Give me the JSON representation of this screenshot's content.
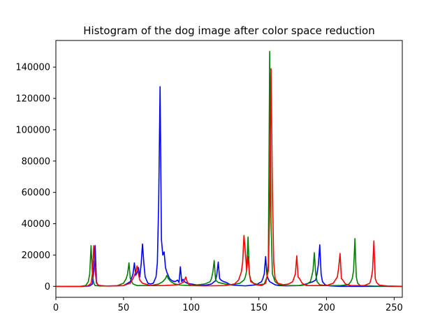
{
  "chart_data": {
    "type": "line",
    "title": "Histogram of the dog image after color space reduction",
    "xlabel": "",
    "ylabel": "",
    "xlim": [
      0,
      256
    ],
    "ylim": [
      -7000,
      157000
    ],
    "xticks": [
      0,
      50,
      100,
      150,
      200,
      250
    ],
    "yticks": [
      0,
      20000,
      40000,
      60000,
      80000,
      100000,
      120000,
      140000
    ],
    "grid": false,
    "legend": "none",
    "series": [
      {
        "color": "#0000ff",
        "points": [
          [
            0,
            0
          ],
          [
            20,
            0
          ],
          [
            25,
            300
          ],
          [
            27,
            1500
          ],
          [
            28,
            10000
          ],
          [
            29,
            26000
          ],
          [
            30,
            3000
          ],
          [
            31,
            800
          ],
          [
            35,
            300
          ],
          [
            40,
            200
          ],
          [
            50,
            500
          ],
          [
            55,
            3000
          ],
          [
            57,
            8000
          ],
          [
            58,
            15000
          ],
          [
            59,
            7000
          ],
          [
            60,
            9000
          ],
          [
            61,
            12000
          ],
          [
            62,
            6000
          ],
          [
            63,
            14000
          ],
          [
            64,
            27000
          ],
          [
            65,
            15000
          ],
          [
            66,
            6000
          ],
          [
            68,
            2000
          ],
          [
            70,
            1500
          ],
          [
            72,
            2000
          ],
          [
            74,
            6000
          ],
          [
            75,
            15000
          ],
          [
            76,
            55000
          ],
          [
            77,
            127500
          ],
          [
            78,
            30000
          ],
          [
            79,
            20000
          ],
          [
            80,
            22000
          ],
          [
            81,
            12000
          ],
          [
            82,
            9000
          ],
          [
            84,
            5000
          ],
          [
            86,
            3500
          ],
          [
            88,
            3000
          ],
          [
            90,
            4000
          ],
          [
            91,
            2500
          ],
          [
            92,
            12500
          ],
          [
            93,
            3000
          ],
          [
            94,
            4500
          ],
          [
            95,
            3000
          ],
          [
            97,
            2000
          ],
          [
            100,
            1500
          ],
          [
            105,
            800
          ],
          [
            110,
            600
          ],
          [
            115,
            1500
          ],
          [
            117,
            3000
          ],
          [
            118,
            3500
          ],
          [
            119,
            8000
          ],
          [
            120,
            15500
          ],
          [
            121,
            5000
          ],
          [
            122,
            4000
          ],
          [
            124,
            3000
          ],
          [
            126,
            2500
          ],
          [
            128,
            1500
          ],
          [
            130,
            800
          ],
          [
            140,
            300
          ],
          [
            148,
            1000
          ],
          [
            150,
            2000
          ],
          [
            152,
            3000
          ],
          [
            153,
            5000
          ],
          [
            154,
            8000
          ],
          [
            155,
            19000
          ],
          [
            156,
            7000
          ],
          [
            157,
            4500
          ],
          [
            158,
            3000
          ],
          [
            160,
            2000
          ],
          [
            162,
            1000
          ],
          [
            165,
            500
          ],
          [
            170,
            300
          ],
          [
            180,
            500
          ],
          [
            185,
            1500
          ],
          [
            190,
            3000
          ],
          [
            192,
            4000
          ],
          [
            193,
            8000
          ],
          [
            194,
            14000
          ],
          [
            195,
            26500
          ],
          [
            196,
            8000
          ],
          [
            197,
            3000
          ],
          [
            199,
            1000
          ],
          [
            202,
            300
          ],
          [
            210,
            0
          ],
          [
            256,
            0
          ]
        ]
      },
      {
        "color": "#008000",
        "points": [
          [
            0,
            0
          ],
          [
            18,
            0
          ],
          [
            22,
            500
          ],
          [
            24,
            3000
          ],
          [
            25,
            8000
          ],
          [
            26,
            26000
          ],
          [
            27,
            8000
          ],
          [
            28,
            2000
          ],
          [
            29,
            500
          ],
          [
            33,
            200
          ],
          [
            45,
            300
          ],
          [
            50,
            2000
          ],
          [
            52,
            5000
          ],
          [
            53,
            8000
          ],
          [
            54,
            15000
          ],
          [
            55,
            5000
          ],
          [
            57,
            1500
          ],
          [
            60,
            500
          ],
          [
            70,
            500
          ],
          [
            76,
            1500
          ],
          [
            79,
            3000
          ],
          [
            81,
            5000
          ],
          [
            82,
            7000
          ],
          [
            83,
            5000
          ],
          [
            85,
            3000
          ],
          [
            88,
            1500
          ],
          [
            92,
            800
          ],
          [
            100,
            500
          ],
          [
            110,
            1500
          ],
          [
            114,
            3000
          ],
          [
            115,
            5000
          ],
          [
            116,
            9000
          ],
          [
            117,
            16500
          ],
          [
            118,
            4000
          ],
          [
            120,
            2500
          ],
          [
            125,
            1500
          ],
          [
            130,
            1000
          ],
          [
            136,
            2000
          ],
          [
            139,
            4000
          ],
          [
            140,
            6000
          ],
          [
            141,
            10000
          ],
          [
            142,
            31500
          ],
          [
            143,
            8000
          ],
          [
            144,
            4000
          ],
          [
            146,
            2000
          ],
          [
            150,
            1000
          ],
          [
            154,
            1500
          ],
          [
            156,
            6000
          ],
          [
            157,
            15000
          ],
          [
            158,
            150000
          ],
          [
            159,
            40000
          ],
          [
            160,
            8000
          ],
          [
            162,
            3000
          ],
          [
            165,
            1000
          ],
          [
            170,
            500
          ],
          [
            180,
            500
          ],
          [
            185,
            1000
          ],
          [
            188,
            3000
          ],
          [
            189,
            6000
          ],
          [
            190,
            10000
          ],
          [
            191,
            21500
          ],
          [
            192,
            8000
          ],
          [
            193,
            3000
          ],
          [
            195,
            1000
          ],
          [
            200,
            500
          ],
          [
            210,
            500
          ],
          [
            216,
            1000
          ],
          [
            218,
            3000
          ],
          [
            219,
            5000
          ],
          [
            220,
            10000
          ],
          [
            221,
            30500
          ],
          [
            222,
            6000
          ],
          [
            223,
            2000
          ],
          [
            225,
            500
          ],
          [
            235,
            200
          ],
          [
            256,
            0
          ]
        ]
      },
      {
        "color": "#ff0000",
        "points": [
          [
            0,
            0
          ],
          [
            20,
            0
          ],
          [
            24,
            500
          ],
          [
            26,
            2000
          ],
          [
            27,
            8000
          ],
          [
            28,
            26000
          ],
          [
            29,
            10000
          ],
          [
            30,
            2000
          ],
          [
            32,
            500
          ],
          [
            38,
            200
          ],
          [
            50,
            500
          ],
          [
            55,
            2000
          ],
          [
            57,
            5000
          ],
          [
            59,
            9000
          ],
          [
            60,
            13000
          ],
          [
            61,
            8000
          ],
          [
            62,
            4000
          ],
          [
            64,
            2000
          ],
          [
            70,
            500
          ],
          [
            80,
            500
          ],
          [
            90,
            1000
          ],
          [
            94,
            2500
          ],
          [
            95,
            4000
          ],
          [
            96,
            6000
          ],
          [
            97,
            3000
          ],
          [
            98,
            1500
          ],
          [
            100,
            500
          ],
          [
            110,
            300
          ],
          [
            125,
            500
          ],
          [
            132,
            1500
          ],
          [
            135,
            4000
          ],
          [
            137,
            9000
          ],
          [
            138,
            15000
          ],
          [
            139,
            32500
          ],
          [
            140,
            22000
          ],
          [
            141,
            10000
          ],
          [
            142,
            19000
          ],
          [
            143,
            8000
          ],
          [
            144,
            3000
          ],
          [
            148,
            1000
          ],
          [
            152,
            500
          ],
          [
            155,
            2000
          ],
          [
            157,
            10000
          ],
          [
            158,
            50000
          ],
          [
            159,
            139000
          ],
          [
            160,
            60000
          ],
          [
            161,
            15000
          ],
          [
            162,
            5000
          ],
          [
            164,
            2000
          ],
          [
            168,
            1000
          ],
          [
            172,
            1500
          ],
          [
            175,
            3000
          ],
          [
            177,
            8000
          ],
          [
            178,
            19500
          ],
          [
            179,
            6000
          ],
          [
            180,
            5000
          ],
          [
            182,
            2000
          ],
          [
            185,
            500
          ],
          [
            200,
            500
          ],
          [
            205,
            2000
          ],
          [
            208,
            6000
          ],
          [
            209,
            12000
          ],
          [
            210,
            21000
          ],
          [
            211,
            5000
          ],
          [
            212,
            4000
          ],
          [
            214,
            1500
          ],
          [
            218,
            500
          ],
          [
            228,
            500
          ],
          [
            232,
            2000
          ],
          [
            233,
            5000
          ],
          [
            234,
            10000
          ],
          [
            235,
            29000
          ],
          [
            236,
            5000
          ],
          [
            237,
            2500
          ],
          [
            239,
            800
          ],
          [
            245,
            200
          ],
          [
            256,
            0
          ]
        ]
      }
    ]
  }
}
